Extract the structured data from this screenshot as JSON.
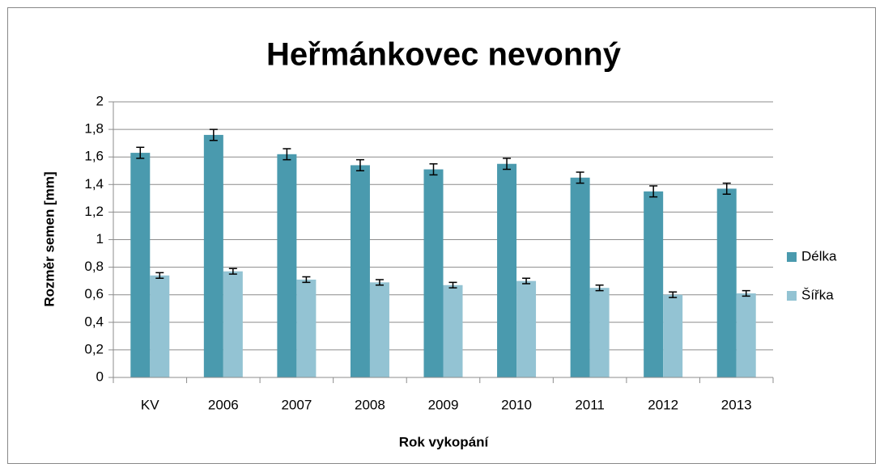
{
  "chart_data": {
    "type": "bar",
    "title": "Heřmánkovec nevonný",
    "x_label": "Rok vykopání",
    "y_label": "Rozměr semen [mm]",
    "categories": [
      "KV",
      "2006",
      "2007",
      "2008",
      "2009",
      "2010",
      "2011",
      "2012",
      "2013"
    ],
    "series": [
      {
        "name": "Délka",
        "color": "#4a9aae",
        "values": [
          1.63,
          1.76,
          1.62,
          1.54,
          1.51,
          1.55,
          1.45,
          1.35,
          1.37
        ],
        "errors": [
          0.04,
          0.04,
          0.04,
          0.04,
          0.04,
          0.04,
          0.04,
          0.04,
          0.04
        ]
      },
      {
        "name": "Šířka",
        "color": "#93c3d3",
        "values": [
          0.74,
          0.77,
          0.71,
          0.69,
          0.67,
          0.7,
          0.65,
          0.6,
          0.61
        ],
        "errors": [
          0.02,
          0.02,
          0.02,
          0.02,
          0.02,
          0.02,
          0.02,
          0.02,
          0.02
        ]
      }
    ],
    "ylim": [
      0,
      2
    ],
    "yticks": [
      0,
      {
        "value": 0.2,
        "label": "0,2"
      },
      {
        "value": 0.4,
        "label": "0,4"
      },
      {
        "value": 0.6,
        "label": "0,6"
      },
      {
        "value": 0.8,
        "label": "0,8"
      },
      1,
      {
        "value": 1.2,
        "label": "1,2"
      },
      {
        "value": 1.4,
        "label": "1,4"
      },
      {
        "value": 1.6,
        "label": "1,6"
      },
      {
        "value": 1.8,
        "label": "1,8"
      },
      2
    ],
    "grid": true,
    "legend": "right"
  }
}
